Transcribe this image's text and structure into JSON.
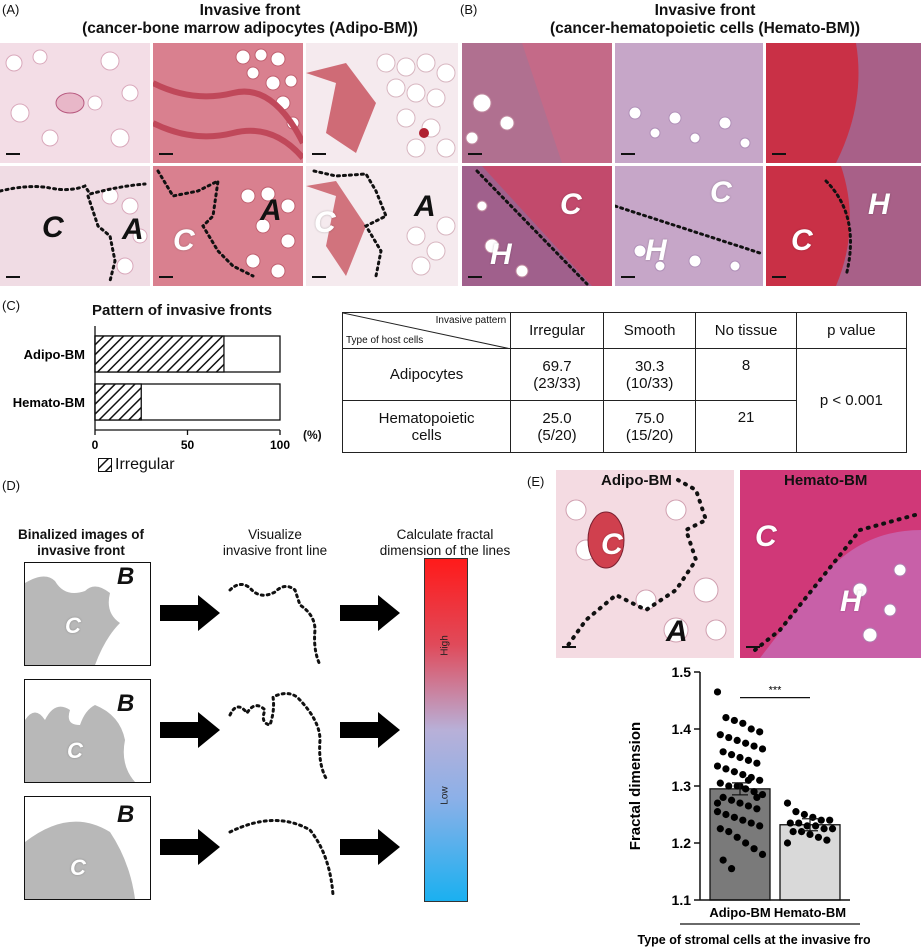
{
  "panelA": {
    "label": "(A)",
    "title_line1": "Invasive front",
    "title_line2": "(cancer-bone marrow adipocytes (Adipo-BM))",
    "letters": [
      "C",
      "A",
      "C",
      "A",
      "C",
      "A"
    ]
  },
  "panelB": {
    "label": "(B)",
    "title_line1": "Invasive front",
    "title_line2": "(cancer-hematopoietic cells (Hemato-BM))",
    "letters": [
      "C",
      "H",
      "C",
      "H",
      "C",
      "H"
    ]
  },
  "panelC": {
    "label": "(C)",
    "chart_data": {
      "type": "bar",
      "title": "Pattern of invasive fronts",
      "categories": [
        "Adipo-BM",
        "Hemato-BM"
      ],
      "series": [
        {
          "name": "Irregular",
          "values": [
            69.7,
            25.0
          ]
        }
      ],
      "xlim": [
        0,
        100
      ],
      "xticks": [
        "0",
        "50",
        "100"
      ],
      "unit": "(%)",
      "legend": "Irregular",
      "orientation": "horizontal"
    },
    "table": {
      "header_top": "Invasive pattern",
      "header_bottom": "Type of host cells",
      "columns": [
        "Irregular",
        "Smooth",
        "No tissue",
        "p value"
      ],
      "rows": [
        {
          "label": "Adipocytes",
          "irregular": "69.7",
          "irregular_n": "(23/33)",
          "smooth": "30.3",
          "smooth_n": "(10/33)",
          "no_tissue": "8"
        },
        {
          "label_line1": "Hematopoietic",
          "label_line2": "cells",
          "irregular": "25.0",
          "irregular_n": "(5/20)",
          "smooth": "75.0",
          "smooth_n": "(15/20)",
          "no_tissue": "21"
        }
      ],
      "p_value": "p < 0.001"
    }
  },
  "panelD": {
    "label": "(D)",
    "col1_line1": "Binalized images of",
    "col1_line2": "invasive front",
    "col2_line1": "Visualize",
    "col2_line2": "invasive front line",
    "col3_line1": "Calculate fractal",
    "col3_line2": "dimension of the lines",
    "b_letter": "B",
    "c_letter": "C",
    "bar_high": "High",
    "bar_low": "Low"
  },
  "panelE": {
    "label": "(E)",
    "img1_title": "Adipo-BM",
    "img2_title": "Hemato-BM",
    "img_letters": [
      "C",
      "A",
      "C",
      "H"
    ],
    "chart_data": {
      "type": "bar",
      "categories": [
        "Adipo-BM",
        "Hemato-BM"
      ],
      "values": [
        1.295,
        1.232
      ],
      "ylabel": "Fractal dimension",
      "xlabel": "Type of stromal cells at the invasive front",
      "ylim": [
        1.1,
        1.5
      ],
      "yticks": [
        "1.1",
        "1.2",
        "1.3",
        "1.4",
        "1.5"
      ],
      "significance": "***",
      "bar_colors": [
        "#7a7a7a",
        "#d9d9d9"
      ],
      "points": {
        "Adipo-BM": [
          1.465,
          1.42,
          1.415,
          1.41,
          1.4,
          1.395,
          1.39,
          1.385,
          1.38,
          1.375,
          1.37,
          1.365,
          1.36,
          1.355,
          1.35,
          1.345,
          1.34,
          1.335,
          1.33,
          1.325,
          1.32,
          1.315,
          1.31,
          1.305,
          1.3,
          1.3,
          1.295,
          1.29,
          1.285,
          1.28,
          1.275,
          1.27,
          1.265,
          1.26,
          1.255,
          1.25,
          1.245,
          1.24,
          1.235,
          1.23,
          1.225,
          1.22,
          1.21,
          1.2,
          1.19,
          1.18,
          1.17,
          1.155,
          1.3,
          1.31,
          1.28,
          1.27
        ],
        "Hemato-BM": [
          1.27,
          1.255,
          1.25,
          1.245,
          1.24,
          1.24,
          1.235,
          1.235,
          1.23,
          1.23,
          1.225,
          1.225,
          1.22,
          1.22,
          1.215,
          1.21,
          1.205,
          1.2
        ]
      }
    }
  }
}
